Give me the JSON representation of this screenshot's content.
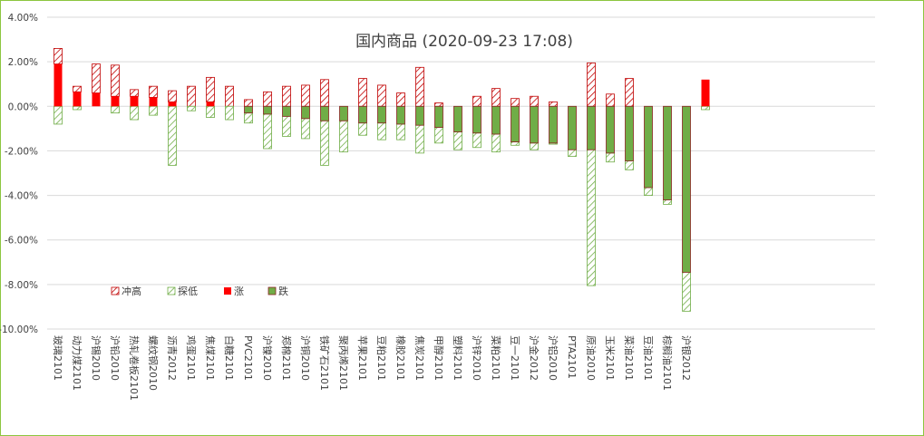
{
  "chart_data": {
    "type": "bar",
    "title": "国内商品 (2020-09-23 17:08)",
    "y_tick_labels": [
      "4.00%",
      "2.00%",
      "0.00%",
      "-2.00%",
      "-4.00%",
      "-6.00%",
      "-8.00%",
      "-10.00%"
    ],
    "ylim": [
      -10,
      4
    ],
    "grid": true,
    "legend_position": "inside-bottom-left",
    "categories": [
      "玻璃2101",
      "动力煤2101",
      "沪锡2010",
      "沪铅2010",
      "热轧卷板2101",
      "螺纹钢2010",
      "沥青2012",
      "鸡蛋2101",
      "焦煤2101",
      "白糖2101",
      "PVC2101",
      "沪镍2010",
      "郑棉2101",
      "沪铜2010",
      "铁矿石2101",
      "聚丙烯2101",
      "苹果2101",
      "豆粕2101",
      "橡胶2101",
      "焦炭2101",
      "甲醇2101",
      "塑料2101",
      "沪锌2010",
      "菜粕2101",
      "豆一2101",
      "沪金2012",
      "沪铝2010",
      "PTA2101",
      "原油2010",
      "玉米2101",
      "菜油2101",
      "豆油2101",
      "棕榈油2101",
      "沪银2012"
    ],
    "series": [
      {
        "name": "冲高",
        "values": [
          2.6,
          0.9,
          1.9,
          1.85,
          0.75,
          0.9,
          0.7,
          0.9,
          1.3,
          0.9,
          0.3,
          0.65,
          0.9,
          0.95,
          1.2,
          0.0,
          1.25,
          0.95,
          0.6,
          1.75,
          0.15,
          0.0,
          0.45,
          0.8,
          0.35,
          0.45,
          0.2,
          0.0,
          1.95,
          0.55,
          1.25,
          0.0,
          0.0,
          0.0
        ]
      },
      {
        "name": "探低",
        "values": [
          -0.8,
          -0.15,
          0.0,
          -0.3,
          -0.6,
          -0.4,
          -2.65,
          -0.2,
          -0.5,
          -0.6,
          -0.75,
          -1.9,
          -1.35,
          -1.45,
          -2.65,
          -2.05,
          -1.3,
          -1.5,
          -1.5,
          -2.1,
          -1.65,
          -1.95,
          -1.85,
          -2.05,
          -1.75,
          -1.95,
          -1.7,
          -2.25,
          -8.05,
          -2.5,
          -2.85,
          -4.0,
          -4.4,
          -9.2
        ]
      },
      {
        "name": "涨",
        "values": [
          1.9,
          0.65,
          0.6,
          0.45,
          0.45,
          0.4,
          0.2,
          0.0,
          0.2,
          0.0,
          0.0,
          0.0,
          0.0,
          0.0,
          0.0,
          0.0,
          0.0,
          0.0,
          0.0,
          0.0,
          0.0,
          0.0,
          0.0,
          0.0,
          0.0,
          0.0,
          0.0,
          0.0,
          0.0,
          0.0,
          0.0,
          0.0,
          0.0,
          0.0
        ]
      },
      {
        "name": "跌",
        "values": [
          0.0,
          0.0,
          0.0,
          0.0,
          0.0,
          0.0,
          0.0,
          0.0,
          0.0,
          0.0,
          -0.3,
          -0.35,
          -0.45,
          -0.55,
          -0.65,
          -0.65,
          -0.75,
          -0.75,
          -0.8,
          -0.85,
          -0.95,
          -1.15,
          -1.2,
          -1.25,
          -1.6,
          -1.65,
          -1.65,
          -1.95,
          -1.95,
          -2.1,
          -2.45,
          -3.65,
          -4.2,
          -7.45
        ]
      }
    ],
    "extra_bar": {
      "high": 1.2,
      "low": -0.15,
      "up": 1.2,
      "down": 0.0
    }
  },
  "colors": {
    "up": "#ff0000",
    "up_hatch": "#c00000",
    "down": "#70ad47",
    "down_hatch": "#70ad47",
    "down_edge": "#8b2323",
    "grid": "#d9d9d9",
    "frame": "#8cc63f"
  }
}
